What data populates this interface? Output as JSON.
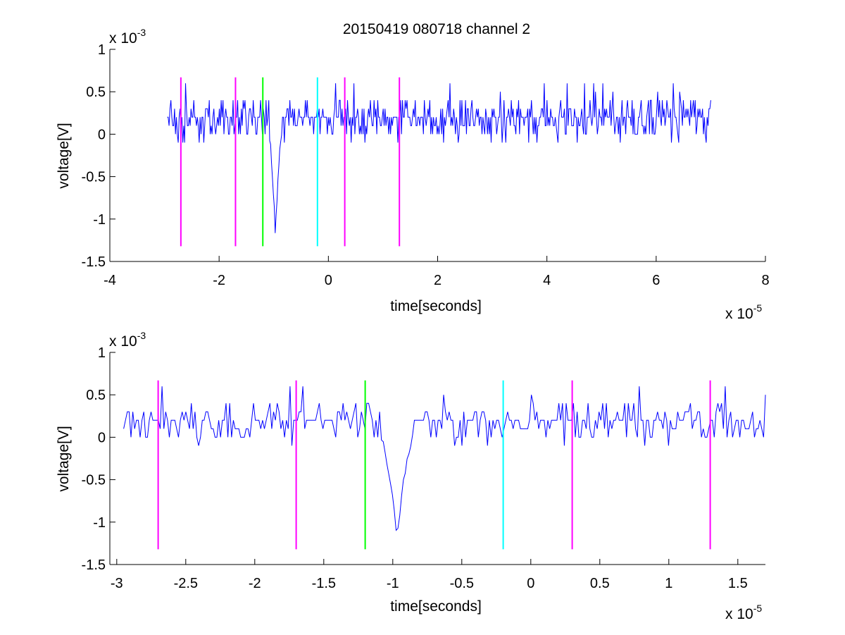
{
  "figure_title": "20150419 080718 channel 2",
  "colors": {
    "signal": "#0000ff",
    "magenta": "#ff00ff",
    "green": "#00ff00",
    "cyan": "#00ffff",
    "axis": "#000000"
  },
  "chart_data": [
    {
      "type": "line",
      "title": "20150419 080718 channel 2",
      "xlabel": "time[seconds]",
      "ylabel": "voltage[V]",
      "x_multiplier": "x 10",
      "x_exponent": "-5",
      "y_multiplier": "x 10",
      "y_exponent": "-3",
      "xlim": [
        -4,
        8
      ],
      "ylim": [
        -1.5,
        1
      ],
      "xticks": [
        -4,
        -2,
        0,
        2,
        4,
        6,
        8
      ],
      "xtick_labels": [
        "-4",
        "-2",
        "0",
        "2",
        "4",
        "6",
        "8"
      ],
      "yticks": [
        -1.5,
        -1,
        -0.5,
        0,
        0.5,
        1
      ],
      "ytick_labels": [
        "-1.5",
        "-1",
        "-0.5",
        "0",
        "0.5",
        "1"
      ],
      "grid": false,
      "signal_x_range": [
        -2.95,
        7.0
      ],
      "spike": {
        "x": -0.97,
        "min_y": -1.2
      },
      "markers": [
        {
          "x": -2.7,
          "color": "magenta",
          "y_range": [
            -1.32,
            0.67
          ]
        },
        {
          "x": -1.7,
          "color": "magenta",
          "y_range": [
            -1.32,
            0.67
          ]
        },
        {
          "x": -1.2,
          "color": "green",
          "y_range": [
            -1.32,
            0.67
          ]
        },
        {
          "x": -0.2,
          "color": "cyan",
          "y_range": [
            -1.32,
            0.67
          ]
        },
        {
          "x": 0.3,
          "color": "magenta",
          "y_range": [
            -1.32,
            0.67
          ]
        },
        {
          "x": 1.3,
          "color": "magenta",
          "y_range": [
            -1.32,
            0.67
          ]
        }
      ]
    },
    {
      "type": "line",
      "title": "",
      "xlabel": "time[seconds]",
      "ylabel": "voltage[V]",
      "x_multiplier": "x 10",
      "x_exponent": "-5",
      "y_multiplier": "x 10",
      "y_exponent": "-3",
      "xlim": [
        -3.05,
        1.7
      ],
      "ylim": [
        -1.5,
        1
      ],
      "xticks": [
        -3,
        -2.5,
        -2,
        -1.5,
        -1,
        -0.5,
        0,
        0.5,
        1,
        1.5
      ],
      "xtick_labels": [
        "-3",
        "-2.5",
        "-2",
        "-1.5",
        "-1",
        "-0.5",
        "0",
        "0.5",
        "1",
        "1.5"
      ],
      "yticks": [
        -1.5,
        -1,
        -0.5,
        0,
        0.5,
        1
      ],
      "ytick_labels": [
        "-1.5",
        "-1",
        "-0.5",
        "0",
        "0.5",
        "1"
      ],
      "grid": false,
      "signal_x_range": [
        -2.95,
        1.7
      ],
      "spike": {
        "x": -0.97,
        "min_y": -1.2
      },
      "markers": [
        {
          "x": -2.7,
          "color": "magenta",
          "y_range": [
            -1.32,
            0.67
          ]
        },
        {
          "x": -1.7,
          "color": "magenta",
          "y_range": [
            -1.32,
            0.67
          ]
        },
        {
          "x": -1.2,
          "color": "green",
          "y_range": [
            -1.32,
            0.67
          ]
        },
        {
          "x": -0.2,
          "color": "cyan",
          "y_range": [
            -1.32,
            0.67
          ]
        },
        {
          "x": 0.3,
          "color": "magenta",
          "y_range": [
            -1.32,
            0.67
          ]
        },
        {
          "x": 1.3,
          "color": "magenta",
          "y_range": [
            -1.32,
            0.67
          ]
        }
      ]
    }
  ]
}
